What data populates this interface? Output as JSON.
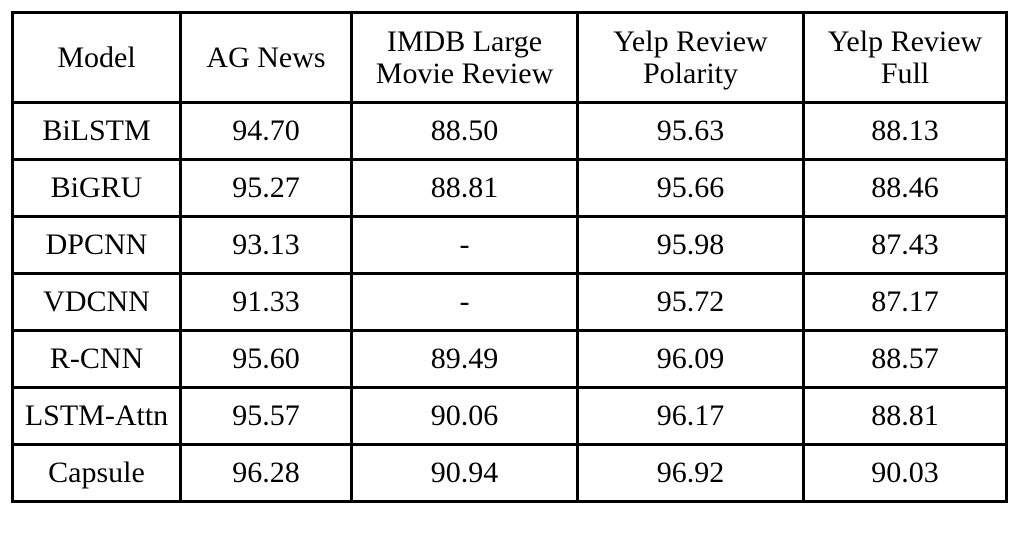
{
  "table": {
    "headers": [
      [
        "Model"
      ],
      [
        "AG News"
      ],
      [
        "IMDB Large",
        "Movie Review"
      ],
      [
        "Yelp Review",
        "Polarity"
      ],
      [
        "Yelp Review",
        "Full"
      ]
    ],
    "rows": [
      [
        "BiLSTM",
        "94.70",
        "88.50",
        "95.63",
        "88.13"
      ],
      [
        "BiGRU",
        "95.27",
        "88.81",
        "95.66",
        "88.46"
      ],
      [
        "DPCNN",
        "93.13",
        "-",
        "95.98",
        "87.43"
      ],
      [
        "VDCNN",
        "91.33",
        "-",
        "95.72",
        "87.17"
      ],
      [
        "R-CNN",
        "95.60",
        "89.49",
        "96.09",
        "88.57"
      ],
      [
        "LSTM-Attn",
        "95.57",
        "90.06",
        "96.17",
        "88.81"
      ],
      [
        "Capsule",
        "96.28",
        "90.94",
        "96.92",
        "90.03"
      ]
    ]
  }
}
